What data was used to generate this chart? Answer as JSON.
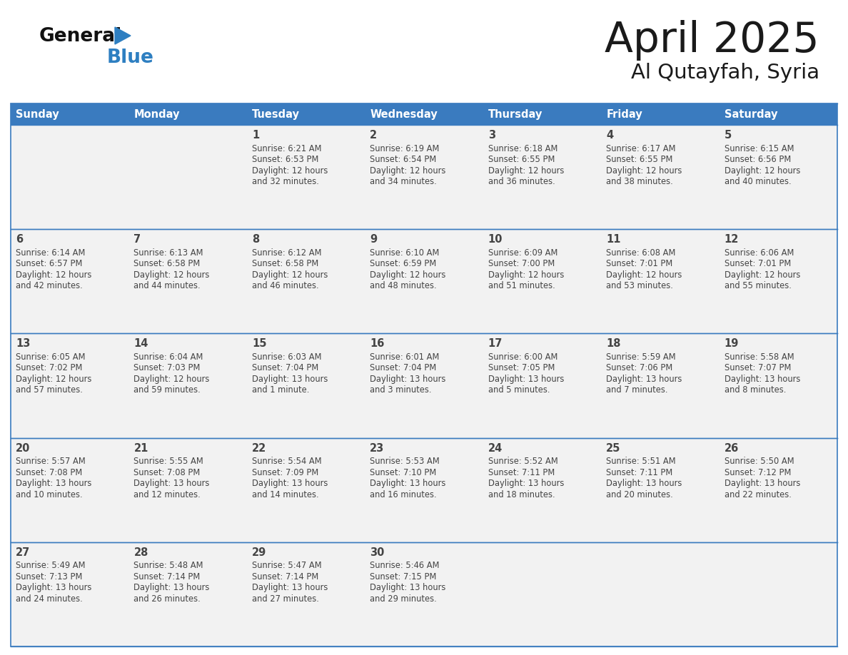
{
  "title": "April 2025",
  "subtitle": "Al Qutayfah, Syria",
  "days_of_week": [
    "Sunday",
    "Monday",
    "Tuesday",
    "Wednesday",
    "Thursday",
    "Friday",
    "Saturday"
  ],
  "header_bg": "#3a7bbf",
  "header_text": "#ffffff",
  "cell_bg": "#f2f2f2",
  "cell_border_color": "#3a7bbf",
  "row_divider_color": "#3a7bbf",
  "title_color": "#1a1a1a",
  "subtitle_color": "#1a1a1a",
  "text_color": "#444444",
  "calendar_data": [
    [
      {
        "day": "",
        "sunrise": "",
        "sunset": "",
        "daylight": ""
      },
      {
        "day": "",
        "sunrise": "",
        "sunset": "",
        "daylight": ""
      },
      {
        "day": "1",
        "sunrise": "Sunrise: 6:21 AM",
        "sunset": "Sunset: 6:53 PM",
        "daylight": "Daylight: 12 hours\nand 32 minutes."
      },
      {
        "day": "2",
        "sunrise": "Sunrise: 6:19 AM",
        "sunset": "Sunset: 6:54 PM",
        "daylight": "Daylight: 12 hours\nand 34 minutes."
      },
      {
        "day": "3",
        "sunrise": "Sunrise: 6:18 AM",
        "sunset": "Sunset: 6:55 PM",
        "daylight": "Daylight: 12 hours\nand 36 minutes."
      },
      {
        "day": "4",
        "sunrise": "Sunrise: 6:17 AM",
        "sunset": "Sunset: 6:55 PM",
        "daylight": "Daylight: 12 hours\nand 38 minutes."
      },
      {
        "day": "5",
        "sunrise": "Sunrise: 6:15 AM",
        "sunset": "Sunset: 6:56 PM",
        "daylight": "Daylight: 12 hours\nand 40 minutes."
      }
    ],
    [
      {
        "day": "6",
        "sunrise": "Sunrise: 6:14 AM",
        "sunset": "Sunset: 6:57 PM",
        "daylight": "Daylight: 12 hours\nand 42 minutes."
      },
      {
        "day": "7",
        "sunrise": "Sunrise: 6:13 AM",
        "sunset": "Sunset: 6:58 PM",
        "daylight": "Daylight: 12 hours\nand 44 minutes."
      },
      {
        "day": "8",
        "sunrise": "Sunrise: 6:12 AM",
        "sunset": "Sunset: 6:58 PM",
        "daylight": "Daylight: 12 hours\nand 46 minutes."
      },
      {
        "day": "9",
        "sunrise": "Sunrise: 6:10 AM",
        "sunset": "Sunset: 6:59 PM",
        "daylight": "Daylight: 12 hours\nand 48 minutes."
      },
      {
        "day": "10",
        "sunrise": "Sunrise: 6:09 AM",
        "sunset": "Sunset: 7:00 PM",
        "daylight": "Daylight: 12 hours\nand 51 minutes."
      },
      {
        "day": "11",
        "sunrise": "Sunrise: 6:08 AM",
        "sunset": "Sunset: 7:01 PM",
        "daylight": "Daylight: 12 hours\nand 53 minutes."
      },
      {
        "day": "12",
        "sunrise": "Sunrise: 6:06 AM",
        "sunset": "Sunset: 7:01 PM",
        "daylight": "Daylight: 12 hours\nand 55 minutes."
      }
    ],
    [
      {
        "day": "13",
        "sunrise": "Sunrise: 6:05 AM",
        "sunset": "Sunset: 7:02 PM",
        "daylight": "Daylight: 12 hours\nand 57 minutes."
      },
      {
        "day": "14",
        "sunrise": "Sunrise: 6:04 AM",
        "sunset": "Sunset: 7:03 PM",
        "daylight": "Daylight: 12 hours\nand 59 minutes."
      },
      {
        "day": "15",
        "sunrise": "Sunrise: 6:03 AM",
        "sunset": "Sunset: 7:04 PM",
        "daylight": "Daylight: 13 hours\nand 1 minute."
      },
      {
        "day": "16",
        "sunrise": "Sunrise: 6:01 AM",
        "sunset": "Sunset: 7:04 PM",
        "daylight": "Daylight: 13 hours\nand 3 minutes."
      },
      {
        "day": "17",
        "sunrise": "Sunrise: 6:00 AM",
        "sunset": "Sunset: 7:05 PM",
        "daylight": "Daylight: 13 hours\nand 5 minutes."
      },
      {
        "day": "18",
        "sunrise": "Sunrise: 5:59 AM",
        "sunset": "Sunset: 7:06 PM",
        "daylight": "Daylight: 13 hours\nand 7 minutes."
      },
      {
        "day": "19",
        "sunrise": "Sunrise: 5:58 AM",
        "sunset": "Sunset: 7:07 PM",
        "daylight": "Daylight: 13 hours\nand 8 minutes."
      }
    ],
    [
      {
        "day": "20",
        "sunrise": "Sunrise: 5:57 AM",
        "sunset": "Sunset: 7:08 PM",
        "daylight": "Daylight: 13 hours\nand 10 minutes."
      },
      {
        "day": "21",
        "sunrise": "Sunrise: 5:55 AM",
        "sunset": "Sunset: 7:08 PM",
        "daylight": "Daylight: 13 hours\nand 12 minutes."
      },
      {
        "day": "22",
        "sunrise": "Sunrise: 5:54 AM",
        "sunset": "Sunset: 7:09 PM",
        "daylight": "Daylight: 13 hours\nand 14 minutes."
      },
      {
        "day": "23",
        "sunrise": "Sunrise: 5:53 AM",
        "sunset": "Sunset: 7:10 PM",
        "daylight": "Daylight: 13 hours\nand 16 minutes."
      },
      {
        "day": "24",
        "sunrise": "Sunrise: 5:52 AM",
        "sunset": "Sunset: 7:11 PM",
        "daylight": "Daylight: 13 hours\nand 18 minutes."
      },
      {
        "day": "25",
        "sunrise": "Sunrise: 5:51 AM",
        "sunset": "Sunset: 7:11 PM",
        "daylight": "Daylight: 13 hours\nand 20 minutes."
      },
      {
        "day": "26",
        "sunrise": "Sunrise: 5:50 AM",
        "sunset": "Sunset: 7:12 PM",
        "daylight": "Daylight: 13 hours\nand 22 minutes."
      }
    ],
    [
      {
        "day": "27",
        "sunrise": "Sunrise: 5:49 AM",
        "sunset": "Sunset: 7:13 PM",
        "daylight": "Daylight: 13 hours\nand 24 minutes."
      },
      {
        "day": "28",
        "sunrise": "Sunrise: 5:48 AM",
        "sunset": "Sunset: 7:14 PM",
        "daylight": "Daylight: 13 hours\nand 26 minutes."
      },
      {
        "day": "29",
        "sunrise": "Sunrise: 5:47 AM",
        "sunset": "Sunset: 7:14 PM",
        "daylight": "Daylight: 13 hours\nand 27 minutes."
      },
      {
        "day": "30",
        "sunrise": "Sunrise: 5:46 AM",
        "sunset": "Sunset: 7:15 PM",
        "daylight": "Daylight: 13 hours\nand 29 minutes."
      },
      {
        "day": "",
        "sunrise": "",
        "sunset": "",
        "daylight": ""
      },
      {
        "day": "",
        "sunrise": "",
        "sunset": "",
        "daylight": ""
      },
      {
        "day": "",
        "sunrise": "",
        "sunset": "",
        "daylight": ""
      }
    ]
  ]
}
